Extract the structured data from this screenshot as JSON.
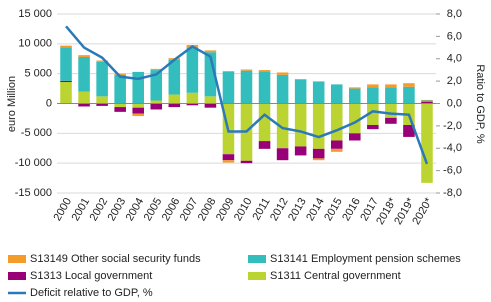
{
  "chart_data": {
    "type": "bar",
    "y_label": "euro Million",
    "y2_label": "Ratio to GDP, %",
    "categories": [
      "2000",
      "2001",
      "2002",
      "2003",
      "2004",
      "2005",
      "2006",
      "2007",
      "2008",
      "2009",
      "2010",
      "2011",
      "2012",
      "2013",
      "2014",
      "2015",
      "2016",
      "2017",
      "2018*",
      "2019*",
      "2020*"
    ],
    "series": [
      {
        "name": "S13149 Other social security funds",
        "color": "#f39c2a",
        "values": [
          300,
          300,
          200,
          200,
          -400,
          200,
          300,
          400,
          300,
          -400,
          200,
          200,
          400,
          100,
          -300,
          -500,
          200,
          500,
          500,
          600,
          100
        ]
      },
      {
        "name": "S13141 Employment pension schemes",
        "color": "#33bdbd",
        "values": [
          5600,
          5800,
          5800,
          4800,
          5300,
          5100,
          5800,
          7600,
          7400,
          5400,
          5500,
          5400,
          4800,
          4000,
          3700,
          3200,
          2500,
          2700,
          2700,
          2800,
          200
        ]
      },
      {
        "name": "S1313 Local government",
        "color": "#990077",
        "values": [
          200,
          -500,
          -400,
          -800,
          -1000,
          -1000,
          -600,
          -300,
          -700,
          -1000,
          -400,
          -1300,
          -2000,
          -1500,
          -1600,
          -1400,
          -1200,
          -700,
          -1000,
          -2000,
          300
        ]
      },
      {
        "name": "S1311 Central government",
        "color": "#bcd432",
        "values": [
          3600,
          2000,
          1200,
          -600,
          -700,
          500,
          1500,
          1800,
          1200,
          -8500,
          -9600,
          -6300,
          -7500,
          -7200,
          -7600,
          -6200,
          -5000,
          -3600,
          -2400,
          -3600,
          -13300
        ]
      },
      {
        "name": "Deficit relative to GDP, %",
        "color": "#2a7ab8",
        "type": "line",
        "axis": "y2",
        "values": [
          6.9,
          5.0,
          4.1,
          2.4,
          2.2,
          2.6,
          3.9,
          5.1,
          4.2,
          -2.5,
          -2.5,
          -1.0,
          -2.2,
          -2.5,
          -3.0,
          -2.4,
          -1.7,
          -0.7,
          -0.9,
          -1.0,
          -5.4
        ]
      }
    ],
    "ylim": [
      -15000,
      15000
    ],
    "yticks": [
      {
        "value": -15000,
        "label": "-15 000"
      },
      {
        "value": -10000,
        "label": "-10 000"
      },
      {
        "value": -5000,
        "label": "-5 000"
      },
      0,
      {
        "value": 5000,
        "label": "5 000"
      },
      {
        "value": 10000,
        "label": "10 000"
      },
      {
        "value": 15000,
        "label": "15 000"
      }
    ],
    "y2lim": [
      -8,
      8
    ],
    "y2ticks": [
      {
        "value": -8,
        "label": "-8,0"
      },
      {
        "value": -6,
        "label": "-6,0"
      },
      {
        "value": -4,
        "label": "-4,0"
      },
      {
        "value": -2,
        "label": "-2,0"
      },
      {
        "value": 0,
        "label": "0,0"
      },
      {
        "value": 2,
        "label": "2,0"
      },
      {
        "value": 4,
        "label": "4,0"
      },
      {
        "value": 6,
        "label": "6,0"
      },
      {
        "value": 8,
        "label": "8,0"
      }
    ],
    "grid": true
  }
}
